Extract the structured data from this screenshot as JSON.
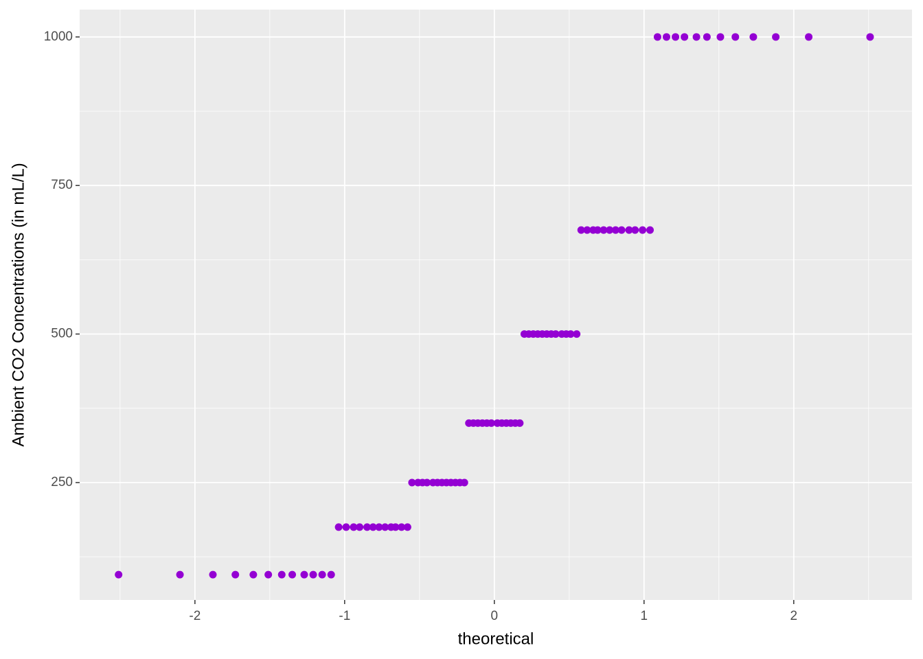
{
  "chart_data": {
    "type": "scatter",
    "xlabel": "theoretical",
    "ylabel": "Ambient CO2 Concentrations (in mL/L)",
    "color": "#9400d3",
    "x": [
      -2.51,
      -2.1,
      -1.88,
      -1.73,
      -1.61,
      -1.51,
      -1.42,
      -1.35,
      -1.27,
      -1.21,
      -1.15,
      -1.09,
      -1.04,
      -0.99,
      -0.94,
      -0.9,
      -0.85,
      -0.81,
      -0.77,
      -0.73,
      -0.69,
      -0.66,
      -0.62,
      -0.58,
      -0.55,
      -0.51,
      -0.48,
      -0.45,
      -0.41,
      -0.38,
      -0.35,
      -0.32,
      -0.29,
      -0.26,
      -0.23,
      -0.2,
      -0.17,
      -0.14,
      -0.11,
      -0.08,
      -0.05,
      -0.02,
      0.02,
      0.05,
      0.08,
      0.11,
      0.14,
      0.17,
      0.2,
      0.23,
      0.26,
      0.29,
      0.32,
      0.35,
      0.38,
      0.41,
      0.45,
      0.48,
      0.51,
      0.55,
      0.58,
      0.62,
      0.66,
      0.69,
      0.73,
      0.77,
      0.81,
      0.85,
      0.9,
      0.94,
      0.99,
      1.04,
      1.09,
      1.15,
      1.21,
      1.27,
      1.35,
      1.42,
      1.51,
      1.61,
      1.73,
      1.88,
      2.1,
      2.51
    ],
    "values": [
      95,
      95,
      95,
      95,
      95,
      95,
      95,
      95,
      95,
      95,
      95,
      95,
      175,
      175,
      175,
      175,
      175,
      175,
      175,
      175,
      175,
      175,
      175,
      175,
      250,
      250,
      250,
      250,
      250,
      250,
      250,
      250,
      250,
      250,
      250,
      250,
      350,
      350,
      350,
      350,
      350,
      350,
      350,
      350,
      350,
      350,
      350,
      350,
      500,
      500,
      500,
      500,
      500,
      500,
      500,
      500,
      500,
      500,
      500,
      500,
      675,
      675,
      675,
      675,
      675,
      675,
      675,
      675,
      675,
      675,
      675,
      675,
      1000,
      1000,
      1000,
      1000,
      1000,
      1000,
      1000,
      1000,
      1000,
      1000,
      1000,
      1000
    ],
    "xlim": [
      -2.77,
      2.79
    ],
    "xticks": [
      -2,
      -1,
      0,
      1,
      2
    ],
    "ylim": [
      52.4,
      1046
    ],
    "yticks": [
      250,
      500,
      750,
      1000
    ],
    "grid": true
  }
}
